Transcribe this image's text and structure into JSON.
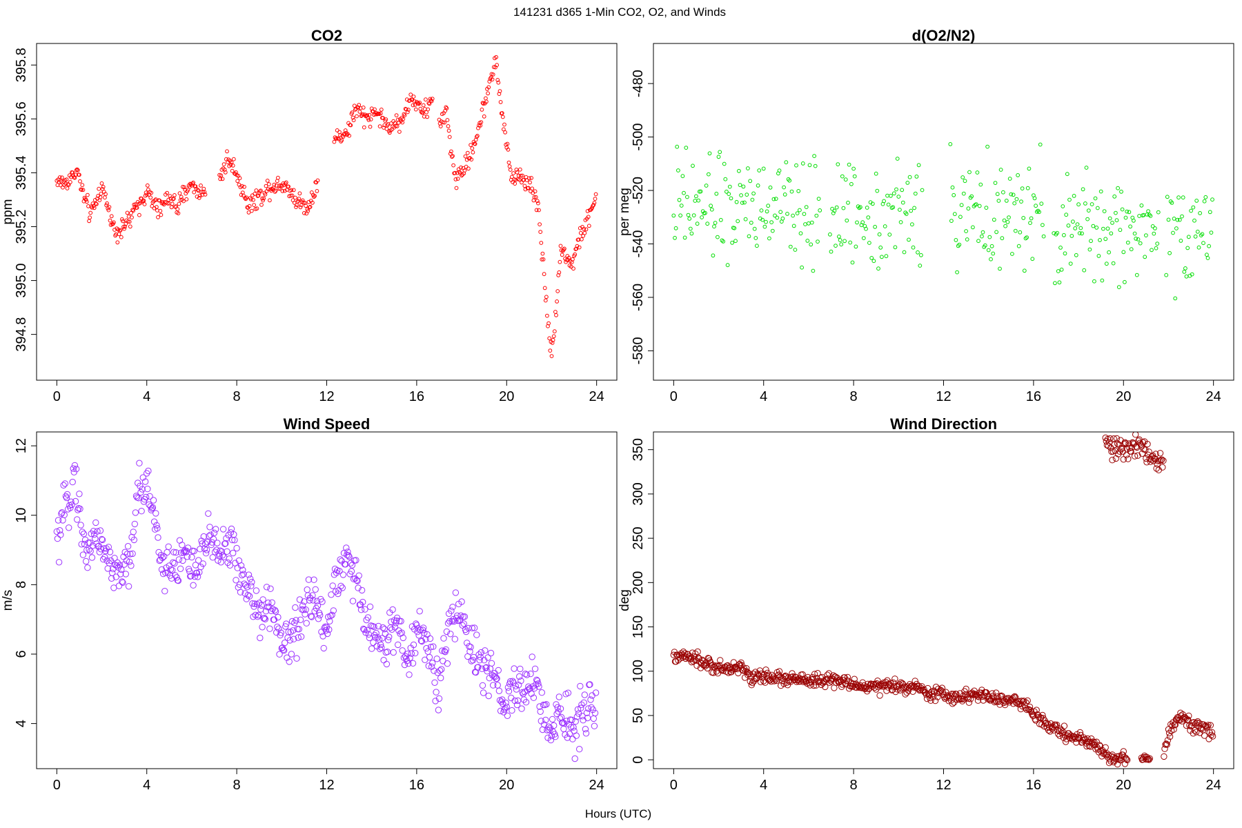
{
  "figure_title": "141231   d365   1-Min CO2, O2, and Winds",
  "x_axis_label": "Hours (UTC)",
  "chart_data": [
    {
      "id": "co2",
      "type": "scatter",
      "title": "CO2",
      "ylabel": "ppm",
      "xlabel": "",
      "color": "#ff0000",
      "point_radius": 2.4,
      "xlim": [
        -0.9,
        24.9
      ],
      "ylim": [
        394.63,
        395.88
      ],
      "xticks": [
        0,
        4,
        8,
        12,
        16,
        20,
        24
      ],
      "yticks": [
        394.8,
        395.0,
        395.2,
        395.4,
        395.6,
        395.8
      ],
      "ytick_labels": [
        "394.8",
        "395.0",
        "395.2",
        "395.4",
        "395.6",
        "395.8"
      ],
      "ytick_rotated": true,
      "gaps": [
        [
          6.6,
          7.2
        ],
        [
          11.6,
          12.3
        ],
        [
          16.7,
          17.0
        ]
      ],
      "noise": 0.025,
      "anchors": [
        [
          0.0,
          395.37
        ],
        [
          0.4,
          395.36
        ],
        [
          0.9,
          395.41
        ],
        [
          1.2,
          395.31
        ],
        [
          1.5,
          395.24
        ],
        [
          2.0,
          395.35
        ],
        [
          2.6,
          395.18
        ],
        [
          3.2,
          395.22
        ],
        [
          3.6,
          395.28
        ],
        [
          4.0,
          395.33
        ],
        [
          4.5,
          395.26
        ],
        [
          5.0,
          395.31
        ],
        [
          5.4,
          395.27
        ],
        [
          5.9,
          395.36
        ],
        [
          6.5,
          395.32
        ],
        [
          7.2,
          395.38
        ],
        [
          7.6,
          395.45
        ],
        [
          8.0,
          395.4
        ],
        [
          8.5,
          395.28
        ],
        [
          9.0,
          395.31
        ],
        [
          9.5,
          395.35
        ],
        [
          10.2,
          395.36
        ],
        [
          10.6,
          395.3
        ],
        [
          11.2,
          395.27
        ],
        [
          11.6,
          395.38
        ],
        [
          12.3,
          395.52
        ],
        [
          12.9,
          395.55
        ],
        [
          13.3,
          395.64
        ],
        [
          13.7,
          395.6
        ],
        [
          14.2,
          395.63
        ],
        [
          14.8,
          395.56
        ],
        [
          15.3,
          395.6
        ],
        [
          15.8,
          395.68
        ],
        [
          16.3,
          395.62
        ],
        [
          16.7,
          395.67
        ],
        [
          17.0,
          395.58
        ],
        [
          17.3,
          395.63
        ],
        [
          17.7,
          395.38
        ],
        [
          18.3,
          395.44
        ],
        [
          18.8,
          395.58
        ],
        [
          19.2,
          395.72
        ],
        [
          19.5,
          395.82
        ],
        [
          19.8,
          395.62
        ],
        [
          20.2,
          395.38
        ],
        [
          20.6,
          395.39
        ],
        [
          21.0,
          395.36
        ],
        [
          21.4,
          395.28
        ],
        [
          22.0,
          394.7
        ],
        [
          22.4,
          395.12
        ],
        [
          22.9,
          395.06
        ],
        [
          23.3,
          395.17
        ],
        [
          23.7,
          395.24
        ],
        [
          24.0,
          395.33
        ]
      ]
    },
    {
      "id": "o2",
      "type": "scatter",
      "title": "d(O2/N2)",
      "ylabel": "per meg",
      "xlabel": "",
      "color": "#00dd00",
      "point_radius": 2.4,
      "xlim": [
        -0.9,
        24.9
      ],
      "ylim": [
        -591,
        -465
      ],
      "xticks": [
        0,
        4,
        8,
        12,
        16,
        20,
        24
      ],
      "yticks": [
        -580,
        -560,
        -540,
        -520,
        -500,
        -480
      ],
      "ytick_labels": [
        "-580",
        "-560",
        "-540",
        "-520",
        "-500",
        "-480"
      ],
      "ytick_rotated": true,
      "spacing": 0.05,
      "gaps": [
        [
          6.5,
          6.9
        ],
        [
          11.1,
          12.3
        ],
        [
          16.5,
          16.9
        ],
        [
          21.6,
          21.9
        ]
      ],
      "noise": 14,
      "anchors": [
        [
          0.0,
          -527
        ],
        [
          4.0,
          -527
        ],
        [
          8.0,
          -529
        ],
        [
          11.0,
          -528
        ],
        [
          12.3,
          -528
        ],
        [
          16.5,
          -532
        ],
        [
          17.0,
          -535
        ],
        [
          20.0,
          -535
        ],
        [
          24.0,
          -534
        ]
      ]
    },
    {
      "id": "wind-speed",
      "type": "scatter",
      "title": "Wind Speed",
      "ylabel": "m/s",
      "xlabel": "",
      "color": "#9b30ff",
      "point_radius": 4.2,
      "xlim": [
        -0.9,
        24.9
      ],
      "ylim": [
        2.7,
        12.4
      ],
      "xticks": [
        0,
        4,
        8,
        12,
        16,
        20,
        24
      ],
      "yticks": [
        4,
        6,
        8,
        10,
        12
      ],
      "ytick_labels": [
        "4",
        "6",
        "8",
        "10",
        "12"
      ],
      "ytick_rotated": true,
      "noise": 0.5,
      "anchors": [
        [
          0.0,
          9.1
        ],
        [
          0.4,
          10.2
        ],
        [
          0.8,
          11.2
        ],
        [
          1.2,
          9.0
        ],
        [
          1.8,
          9.4
        ],
        [
          2.2,
          8.9
        ],
        [
          2.7,
          8.2
        ],
        [
          3.2,
          8.6
        ],
        [
          3.7,
          10.8
        ],
        [
          4.2,
          10.6
        ],
        [
          4.7,
          8.6
        ],
        [
          5.2,
          8.4
        ],
        [
          5.7,
          9.0
        ],
        [
          6.2,
          8.2
        ],
        [
          6.8,
          9.4
        ],
        [
          7.2,
          9.1
        ],
        [
          7.8,
          9.0
        ],
        [
          8.2,
          8.2
        ],
        [
          8.6,
          7.9
        ],
        [
          9.1,
          7.0
        ],
        [
          9.6,
          7.3
        ],
        [
          10.1,
          6.2
        ],
        [
          10.6,
          6.6
        ],
        [
          11.1,
          7.4
        ],
        [
          11.6,
          7.5
        ],
        [
          12.0,
          6.7
        ],
        [
          12.4,
          8.1
        ],
        [
          12.9,
          8.8
        ],
        [
          13.3,
          8.0
        ],
        [
          13.8,
          6.8
        ],
        [
          14.2,
          6.6
        ],
        [
          14.7,
          6.3
        ],
        [
          15.1,
          6.9
        ],
        [
          15.6,
          5.6
        ],
        [
          16.1,
          7.1
        ],
        [
          16.5,
          6.2
        ],
        [
          17.0,
          5.2
        ],
        [
          17.5,
          6.8
        ],
        [
          17.9,
          7.4
        ],
        [
          18.4,
          6.1
        ],
        [
          18.9,
          5.8
        ],
        [
          19.4,
          5.1
        ],
        [
          19.9,
          4.6
        ],
        [
          20.4,
          4.9
        ],
        [
          20.9,
          5.1
        ],
        [
          21.4,
          5.0
        ],
        [
          21.9,
          3.6
        ],
        [
          22.4,
          4.2
        ],
        [
          22.9,
          4.0
        ],
        [
          23.4,
          4.4
        ],
        [
          24.0,
          4.6
        ]
      ]
    },
    {
      "id": "wind-direction",
      "type": "scatter",
      "title": "Wind Direction",
      "ylabel": "deg",
      "xlabel": "",
      "color": "#990000",
      "point_radius": 4.2,
      "xlim": [
        -0.9,
        24.9
      ],
      "ylim": [
        -10,
        370
      ],
      "xticks": [
        0,
        4,
        8,
        12,
        16,
        20,
        24
      ],
      "yticks": [
        0,
        50,
        100,
        150,
        200,
        250,
        300,
        350
      ],
      "ytick_labels": [
        "0",
        "50",
        "100",
        "150",
        "200",
        "250",
        "300",
        "350"
      ],
      "ytick_rotated": true,
      "noise": 5,
      "anchors": [
        [
          0.0,
          115
        ],
        [
          0.5,
          117
        ],
        [
          1.0,
          112
        ],
        [
          1.5,
          108
        ],
        [
          2.0,
          104
        ],
        [
          2.5,
          102
        ],
        [
          3.0,
          106
        ],
        [
          3.4,
          92
        ],
        [
          4.0,
          95
        ],
        [
          5.0,
          91
        ],
        [
          6.0,
          89
        ],
        [
          7.0,
          90
        ],
        [
          8.0,
          84
        ],
        [
          9.0,
          83
        ],
        [
          10.0,
          82
        ],
        [
          10.8,
          84
        ],
        [
          11.2,
          74
        ],
        [
          12.0,
          75
        ],
        [
          12.5,
          68
        ],
        [
          13.0,
          74
        ],
        [
          14.0,
          70
        ],
        [
          15.0,
          67
        ],
        [
          15.6,
          63
        ],
        [
          16.0,
          52
        ],
        [
          16.5,
          40
        ],
        [
          17.0,
          35
        ],
        [
          17.5,
          28
        ],
        [
          18.0,
          24
        ],
        [
          18.5,
          20
        ],
        [
          19.0,
          12
        ],
        [
          19.4,
          2
        ],
        [
          19.8,
          2
        ],
        [
          20.2,
          2
        ]
      ],
      "extra_segments": [
        {
          "x0": 19.2,
          "x1": 21.8,
          "anchors": [
            [
              19.2,
              356
            ],
            [
              19.6,
              352
            ],
            [
              20.0,
              350
            ],
            [
              20.4,
              348
            ],
            [
              20.8,
              353
            ],
            [
              21.0,
              350
            ],
            [
              21.3,
              340
            ],
            [
              21.8,
              335
            ]
          ],
          "noise": 9
        },
        {
          "x0": 20.8,
          "x1": 21.2,
          "anchors": [
            [
              20.8,
              2
            ],
            [
              21.2,
              0
            ]
          ],
          "noise": 2
        },
        {
          "x0": 21.8,
          "x1": 24.0,
          "anchors": [
            [
              21.8,
              8
            ],
            [
              22.1,
              35
            ],
            [
              22.5,
              48
            ],
            [
              23.0,
              40
            ],
            [
              23.5,
              38
            ],
            [
              24.0,
              28
            ]
          ],
          "noise": 6
        }
      ]
    }
  ]
}
